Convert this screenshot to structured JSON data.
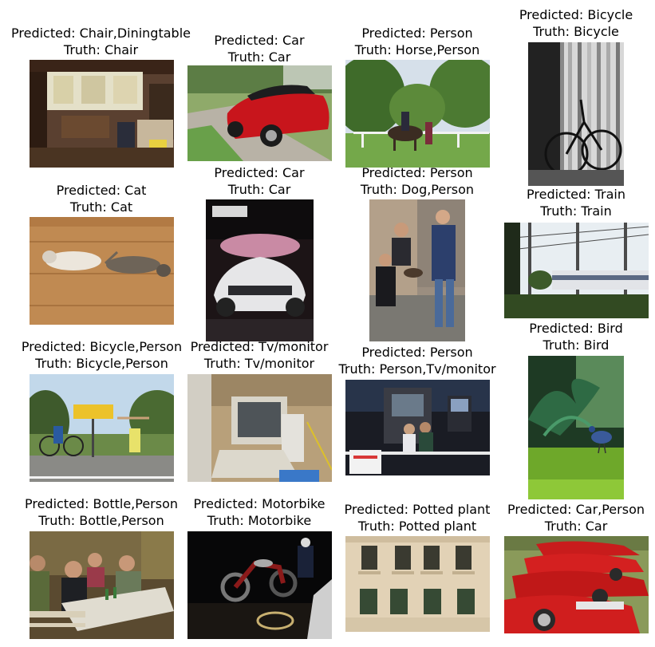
{
  "grid": {
    "items": [
      {
        "predicted": "Predicted: Chair,Diningtable",
        "truth": "Truth: Chair",
        "scene": "interior-room-photo"
      },
      {
        "predicted": "Predicted: Car",
        "truth": "Truth: Car",
        "scene": "red-convertible-car-photo"
      },
      {
        "predicted": "Predicted: Person",
        "truth": "Truth: Horse,Person",
        "scene": "horse-rider-field-photo"
      },
      {
        "predicted": "Predicted: Bicycle",
        "truth": "Truth: Bicycle",
        "scene": "bw-bicycle-photo"
      },
      {
        "predicted": "Predicted: Cat",
        "truth": "Truth: Cat",
        "scene": "cats-on-floor-photo"
      },
      {
        "predicted": "Predicted: Car",
        "truth": "Truth: Car",
        "scene": "saab-concept-car-photo"
      },
      {
        "predicted": "Predicted: Person",
        "truth": "Truth: Dog,Person",
        "scene": "people-with-dog-photo"
      },
      {
        "predicted": "Predicted: Train",
        "truth": "Truth: Train",
        "scene": "train-station-photo"
      },
      {
        "predicted": "Predicted: Bicycle,Person",
        "truth": "Truth: Bicycle,Person",
        "scene": "cyclists-road-sign-photo"
      },
      {
        "predicted": "Predicted: Tv/monitor",
        "truth": "Truth: Tv/monitor",
        "scene": "crt-computer-desk-photo"
      },
      {
        "predicted": "Predicted: Person",
        "truth": "Truth: Person,Tv/monitor",
        "scene": "arcade-machine-photo"
      },
      {
        "predicted": "Predicted: Bird",
        "truth": "Truth: Bird",
        "scene": "blue-bird-garden-photo"
      },
      {
        "predicted": "Predicted: Bottle,Person",
        "truth": "Truth: Bottle,Person",
        "scene": "people-dining-table-photo"
      },
      {
        "predicted": "Predicted: Motorbike",
        "truth": "Truth: Motorbike",
        "scene": "motorbike-night-photo"
      },
      {
        "predicted": "Predicted: Potted plant",
        "truth": "Truth: Potted plant",
        "scene": "building-facade-photo"
      },
      {
        "predicted": "Predicted: Car,Person",
        "truth": "Truth: Car",
        "scene": "red-ferraris-photo"
      }
    ]
  }
}
